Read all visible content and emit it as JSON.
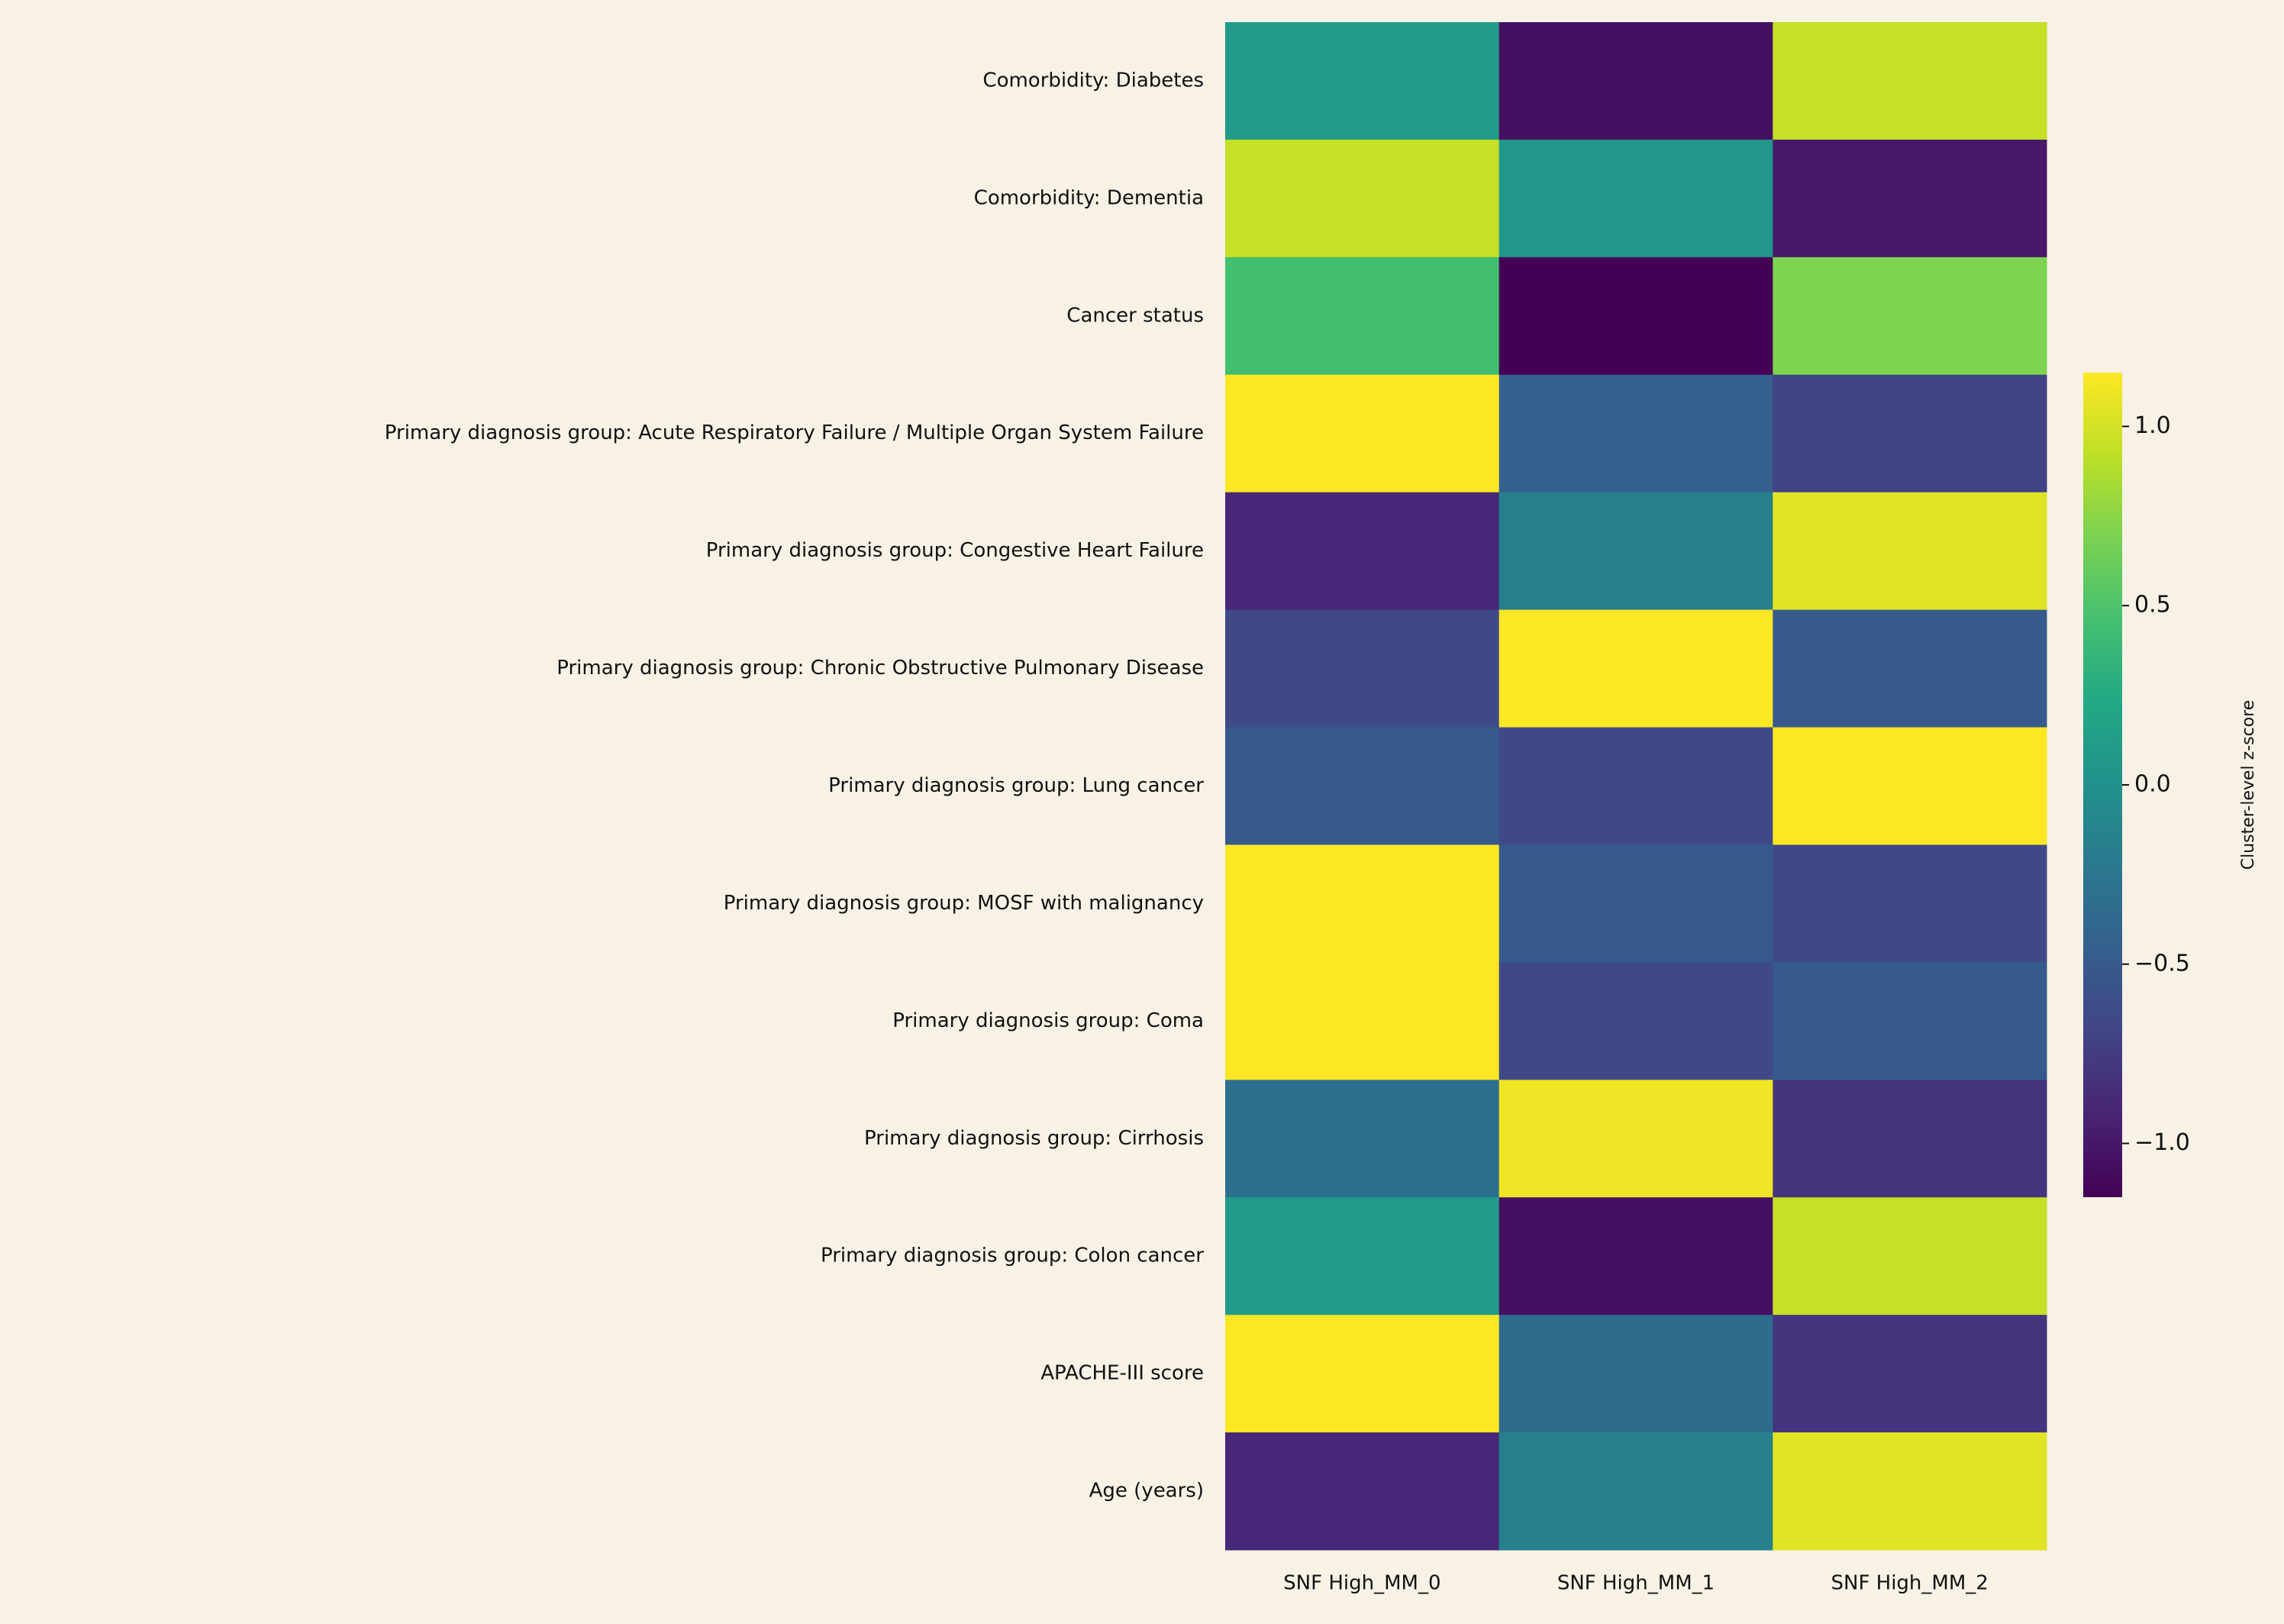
{
  "chart_data": {
    "type": "heatmap",
    "rows": [
      "Comorbidity: Diabetes",
      "Comorbidity: Dementia",
      "Cancer status",
      "Primary diagnosis group: Acute Respiratory Failure / Multiple Organ System Failure",
      "Primary diagnosis group: Congestive Heart Failure",
      "Primary diagnosis group: Chronic Obstructive Pulmonary Disease",
      "Primary diagnosis group: Lung cancer",
      "Primary diagnosis group: MOSF with malignancy",
      "Primary diagnosis group: Coma",
      "Primary diagnosis group: Cirrhosis",
      "Primary diagnosis group: Colon cancer",
      "APACHE-III score",
      "Age (years)"
    ],
    "columns": [
      "SNF High_MM_0",
      "SNF High_MM_1",
      "SNF High_MM_2"
    ],
    "values": [
      [
        0.1,
        -1.05,
        0.95
      ],
      [
        0.95,
        0.05,
        -1.0
      ],
      [
        0.45,
        -1.15,
        0.7
      ],
      [
        1.15,
        -0.45,
        -0.7
      ],
      [
        -0.9,
        -0.15,
        1.05
      ],
      [
        -0.65,
        1.15,
        -0.5
      ],
      [
        -0.5,
        -0.65,
        1.15
      ],
      [
        1.15,
        -0.5,
        -0.65
      ],
      [
        1.15,
        -0.65,
        -0.5
      ],
      [
        -0.3,
        1.1,
        -0.8
      ],
      [
        0.1,
        -1.05,
        0.95
      ],
      [
        1.15,
        -0.35,
        -0.8
      ],
      [
        -0.9,
        -0.15,
        1.05
      ]
    ],
    "colormap": "viridis",
    "clim": [
      -1.15,
      1.15
    ],
    "colorbar_label": "Cluster-level z-score",
    "colorbar_ticks": [
      {
        "value": -1,
        "label": "−1.0"
      },
      {
        "value": -0.5,
        "label": "−0.5"
      },
      {
        "value": 0,
        "label": "0.0"
      },
      0.5,
      {
        "value": 1,
        "label": "1.0"
      }
    ]
  }
}
